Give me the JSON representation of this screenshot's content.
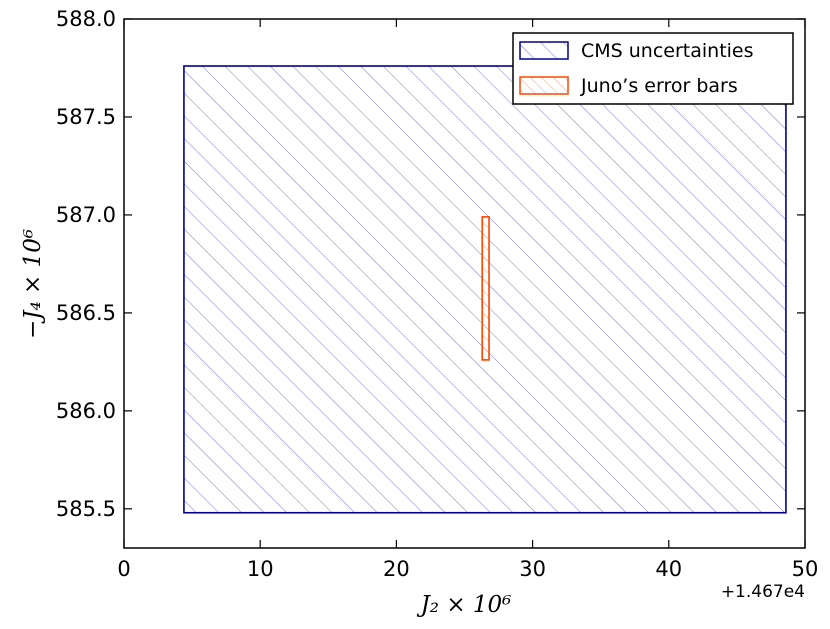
{
  "chart_data": {
    "type": "area",
    "title": "",
    "xlabel": "J₂ × 10⁶",
    "ylabel": "−J₄ × 10⁶",
    "x_offset_label": "+1.467e4",
    "xlim": [
      0,
      50
    ],
    "ylim": [
      585.3,
      588.0
    ],
    "xticks": [
      0,
      10,
      20,
      30,
      40,
      50
    ],
    "yticks": [
      585.5,
      586.0,
      586.5,
      587.0,
      587.5,
      588.0
    ],
    "xtick_labels": [
      "0",
      "10",
      "20",
      "30",
      "40",
      "50"
    ],
    "ytick_labels": [
      "585.5",
      "586.0",
      "586.5",
      "587.0",
      "587.5",
      "588.0"
    ],
    "grid": false,
    "legend_position": "top-right",
    "series": [
      {
        "name": "CMS uncertainties",
        "shape": "rectangle",
        "x_range": [
          4.4,
          48.6
        ],
        "y_range": [
          585.48,
          587.76
        ],
        "color": "#00008b",
        "hatch": "diagonal"
      },
      {
        "name": "Juno’s error bars",
        "shape": "rectangle",
        "x_range": [
          26.3,
          26.8
        ],
        "y_range": [
          586.26,
          586.99
        ],
        "color": "#ff4500",
        "hatch": "diagonal"
      }
    ]
  }
}
